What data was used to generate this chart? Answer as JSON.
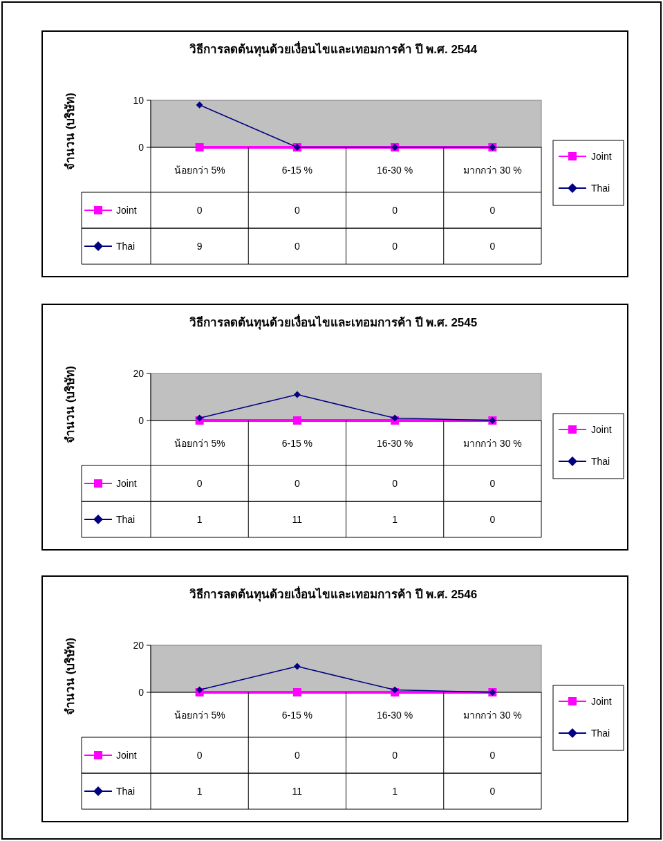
{
  "chart_data": [
    {
      "type": "line",
      "title": "วิธีการลดต้นทุนด้วยเงื่อนไขและเทอมการค้า ปี พ.ศ. 2544",
      "ylabel": "จำนวน (บริษัท)",
      "categories": [
        "น้อยกว่า 5%",
        "6-15 %",
        "16-30 %",
        "มากกว่า 30 %"
      ],
      "ylim": [
        0,
        10
      ],
      "yticks": [
        0,
        10
      ],
      "grid": false,
      "legend": "right",
      "data_labels": true,
      "series": [
        {
          "name": "Joint",
          "color": "#ff00ff",
          "marker": "square",
          "values": [
            0,
            0,
            0,
            0
          ]
        },
        {
          "name": "Thai",
          "color": "#000080",
          "marker": "diamond",
          "values": [
            9,
            0,
            0,
            0
          ]
        }
      ]
    },
    {
      "type": "line",
      "title": "วิธีการลดต้นทุนด้วยเงื่อนไขและเทอมการค้า ปี พ.ศ. 2545",
      "ylabel": "จำนวน (บริษัท)",
      "categories": [
        "น้อยกว่า 5%",
        "6-15 %",
        "16-30 %",
        "มากกว่า 30 %"
      ],
      "ylim": [
        0,
        20
      ],
      "yticks": [
        0,
        20
      ],
      "grid": false,
      "legend": "right",
      "data_labels": true,
      "series": [
        {
          "name": "Joint",
          "color": "#ff00ff",
          "marker": "square",
          "values": [
            0,
            0,
            0,
            0
          ]
        },
        {
          "name": "Thai",
          "color": "#000080",
          "marker": "diamond",
          "values": [
            1,
            11,
            1,
            0
          ]
        }
      ]
    },
    {
      "type": "line",
      "title": "วิธีการลดต้นทุนด้วยเงื่อนไขและเทอมการค้า ปี พ.ศ. 2546",
      "ylabel": "จำนวน (บริษัท)",
      "categories": [
        "น้อยกว่า 5%",
        "6-15 %",
        "16-30 %",
        "มากกว่า 30 %"
      ],
      "ylim": [
        0,
        20
      ],
      "yticks": [
        0,
        20
      ],
      "grid": false,
      "legend": "right",
      "data_labels": true,
      "series": [
        {
          "name": "Joint",
          "color": "#ff00ff",
          "marker": "square",
          "values": [
            0,
            0,
            0,
            0
          ]
        },
        {
          "name": "Thai",
          "color": "#000080",
          "marker": "diamond",
          "values": [
            1,
            11,
            1,
            0
          ]
        }
      ]
    }
  ]
}
